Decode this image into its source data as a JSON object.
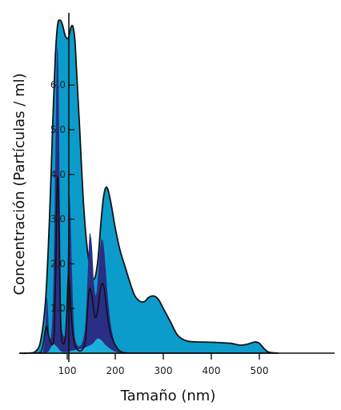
{
  "chart_data": {
    "type": "area",
    "title": "",
    "xlabel": "Tamaño (nm)",
    "ylabel": "Concentración (Partículas / ml)",
    "xlim": [
      0,
      550
    ],
    "ylim": [
      0,
      7.6
    ],
    "grid": false,
    "legend": "none",
    "x_ticks": [
      100,
      200,
      300,
      400,
      500
    ],
    "y_ticks": [
      1.0,
      2.0,
      3.0,
      4.0,
      5.0,
      6.0
    ],
    "y_tick_labels": [
      "1.0",
      "2.0",
      "3.0",
      "4.0",
      "5.0",
      "6.0"
    ],
    "colors": {
      "outer": "#0b9ccc",
      "inner": "#2a2e85",
      "light": "#1ab0dd",
      "stroke": "#111111"
    },
    "series": [
      {
        "fill": "outer",
        "outline": true,
        "points": [
          [
            0,
            0
          ],
          [
            20,
            0
          ],
          [
            35,
            0.05
          ],
          [
            45,
            0.3
          ],
          [
            55,
            1.2
          ],
          [
            63,
            3.0
          ],
          [
            70,
            5.2
          ],
          [
            75,
            6.6
          ],
          [
            80,
            7.35
          ],
          [
            85,
            7.45
          ],
          [
            90,
            7.35
          ],
          [
            96,
            7.1
          ],
          [
            102,
            7.05
          ],
          [
            108,
            7.3
          ],
          [
            112,
            7.3
          ],
          [
            116,
            7.0
          ],
          [
            120,
            6.2
          ],
          [
            126,
            5.0
          ],
          [
            133,
            3.5
          ],
          [
            140,
            2.5
          ],
          [
            146,
            2.0
          ],
          [
            152,
            1.7
          ],
          [
            158,
            1.7
          ],
          [
            164,
            2.1
          ],
          [
            170,
            2.9
          ],
          [
            175,
            3.45
          ],
          [
            180,
            3.7
          ],
          [
            185,
            3.65
          ],
          [
            192,
            3.3
          ],
          [
            200,
            2.8
          ],
          [
            210,
            2.3
          ],
          [
            220,
            1.95
          ],
          [
            230,
            1.6
          ],
          [
            240,
            1.3
          ],
          [
            250,
            1.17
          ],
          [
            260,
            1.15
          ],
          [
            270,
            1.25
          ],
          [
            280,
            1.28
          ],
          [
            290,
            1.2
          ],
          [
            300,
            1.0
          ],
          [
            315,
            0.7
          ],
          [
            330,
            0.4
          ],
          [
            350,
            0.27
          ],
          [
            380,
            0.25
          ],
          [
            410,
            0.24
          ],
          [
            440,
            0.22
          ],
          [
            460,
            0.18
          ],
          [
            475,
            0.2
          ],
          [
            490,
            0.25
          ],
          [
            500,
            0.22
          ],
          [
            510,
            0.1
          ],
          [
            520,
            0.02
          ],
          [
            540,
            0
          ]
        ]
      },
      {
        "fill": "inner",
        "outline": false,
        "points": [
          [
            45,
            0
          ],
          [
            55,
            0.05
          ],
          [
            62,
            0.2
          ],
          [
            68,
            0.6
          ],
          [
            72,
            2.0
          ],
          [
            75,
            4.2
          ],
          [
            78,
            6.5
          ],
          [
            80,
            6.8
          ],
          [
            82,
            6.0
          ],
          [
            84,
            4.0
          ],
          [
            86,
            2.0
          ],
          [
            88,
            0.7
          ],
          [
            92,
            0.4
          ],
          [
            96,
            0.5
          ],
          [
            100,
            1.5
          ],
          [
            103,
            3.2
          ],
          [
            105,
            3.5
          ],
          [
            107,
            3.0
          ],
          [
            110,
            1.8
          ],
          [
            113,
            0.8
          ],
          [
            117,
            0.3
          ],
          [
            125,
            0.15
          ],
          [
            133,
            0.3
          ],
          [
            138,
            0.7
          ],
          [
            142,
            1.6
          ],
          [
            146,
            2.6
          ],
          [
            149,
            2.62
          ],
          [
            152,
            2.3
          ],
          [
            156,
            1.5
          ],
          [
            160,
            1.3
          ],
          [
            164,
            1.7
          ],
          [
            168,
            2.3
          ],
          [
            172,
            2.55
          ],
          [
            176,
            2.4
          ],
          [
            180,
            1.9
          ],
          [
            185,
            1.2
          ],
          [
            190,
            0.7
          ],
          [
            197,
            0.3
          ],
          [
            205,
            0.1
          ],
          [
            220,
            0
          ]
        ]
      },
      {
        "fill": "inner",
        "outline": false,
        "points": [
          [
            49,
            0
          ],
          [
            53,
            0.3
          ],
          [
            56,
            1.0
          ],
          [
            58,
            1.25
          ],
          [
            60,
            0.9
          ],
          [
            63,
            0.3
          ],
          [
            66,
            0
          ]
        ]
      },
      {
        "fill": "light",
        "outline": false,
        "points": [
          [
            55,
            0
          ],
          [
            62,
            0.05
          ],
          [
            70,
            0.2
          ],
          [
            78,
            0.15
          ],
          [
            86,
            0.05
          ],
          [
            95,
            0.02
          ],
          [
            108,
            0.05
          ],
          [
            120,
            0.08
          ],
          [
            132,
            0.1
          ],
          [
            142,
            0.15
          ],
          [
            152,
            0.2
          ],
          [
            160,
            0.3
          ],
          [
            165,
            0.33
          ],
          [
            172,
            0.28
          ],
          [
            180,
            0.18
          ],
          [
            195,
            0.06
          ],
          [
            210,
            0
          ]
        ]
      }
    ],
    "lines": [
      {
        "stroke": "stroke",
        "points": [
          [
            35,
            0
          ],
          [
            45,
            0.03
          ],
          [
            50,
            0.2
          ],
          [
            54,
            0.5
          ],
          [
            57,
            0.6
          ],
          [
            60,
            0.45
          ],
          [
            65,
            0.25
          ],
          [
            70,
            0.2
          ],
          [
            73,
            0.5
          ],
          [
            76,
            1.8
          ],
          [
            78,
            3.3
          ],
          [
            80,
            3.95
          ],
          [
            82,
            3.4
          ],
          [
            84,
            2.0
          ],
          [
            86,
            0.8
          ],
          [
            88,
            0.35
          ],
          [
            92,
            0.2
          ],
          [
            96,
            0.35
          ],
          [
            99,
            0.9
          ],
          [
            101,
            1.5
          ],
          [
            103,
            1.75
          ],
          [
            105,
            1.5
          ],
          [
            108,
            0.9
          ],
          [
            112,
            0.4
          ],
          [
            117,
            0.15
          ],
          [
            125,
            0.05
          ],
          [
            133,
            0.1
          ],
          [
            138,
            0.3
          ],
          [
            142,
            0.9
          ],
          [
            145,
            1.35
          ],
          [
            148,
            1.45
          ],
          [
            151,
            1.3
          ],
          [
            154,
            1.05
          ],
          [
            157,
            0.85
          ],
          [
            160,
            0.8
          ],
          [
            164,
            1.0
          ],
          [
            168,
            1.35
          ],
          [
            172,
            1.55
          ],
          [
            176,
            1.5
          ],
          [
            180,
            1.2
          ],
          [
            185,
            0.75
          ],
          [
            190,
            0.45
          ],
          [
            197,
            0.25
          ],
          [
            205,
            0.1
          ],
          [
            215,
            0.02
          ],
          [
            230,
            0
          ]
        ]
      }
    ]
  }
}
